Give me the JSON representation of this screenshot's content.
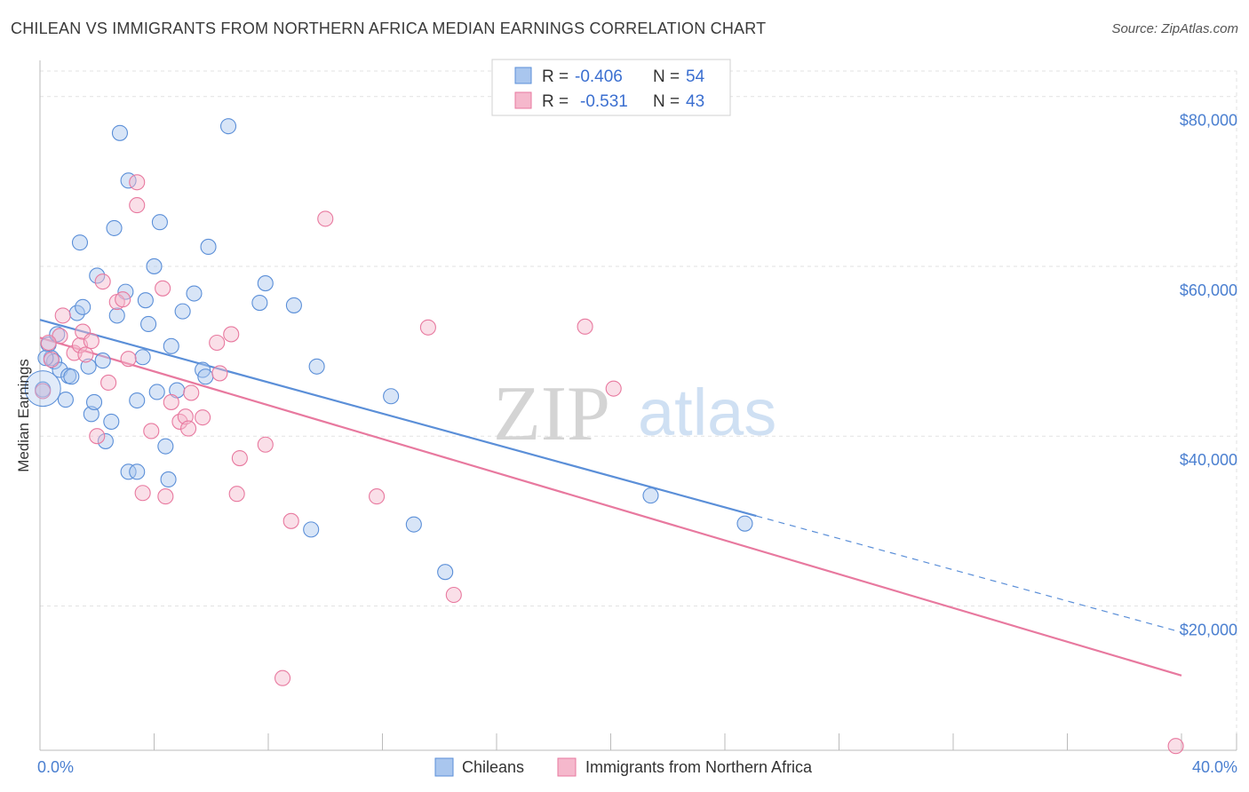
{
  "title": "CHILEAN VS IMMIGRANTS FROM NORTHERN AFRICA MEDIAN EARNINGS CORRELATION CHART",
  "source": "Source: ZipAtlas.com",
  "watermark": {
    "zip": "ZIP",
    "atlas": "atlas"
  },
  "colors": {
    "chileans": "#5b8fd8",
    "chileans_fill": "#a9c6ee",
    "immigrants": "#e8799f",
    "immigrants_fill": "#f5b8cc",
    "tick": "#4a7fd0",
    "grid": "#e2e2e2"
  },
  "chart_data": {
    "type": "scatter",
    "ylabel": "Median Earnings",
    "xlim": [
      0,
      40
    ],
    "ylim": [
      3000,
      83000
    ],
    "x_tick_labels": [
      {
        "value": 0,
        "label": "0.0%"
      },
      {
        "value": 40,
        "label": "40.0%"
      }
    ],
    "y_tick_labels": [
      {
        "value": 20000,
        "label": "$20,000"
      },
      {
        "value": 40000,
        "label": "$40,000"
      },
      {
        "value": 60000,
        "label": "$60,000"
      },
      {
        "value": 80000,
        "label": "$80,000"
      }
    ],
    "legend_stats": [
      {
        "r_label": "R =",
        "r": "-0.406",
        "n_label": "N =",
        "n": "54"
      },
      {
        "r_label": "R =",
        "r": "-0.531",
        "n_label": "N =",
        "n": "43"
      }
    ],
    "series": [
      {
        "name": "Chileans",
        "trend": {
          "x": [
            0,
            25.1
          ],
          "y": [
            53700,
            30600
          ],
          "dashed_to": [
            40,
            16900
          ]
        },
        "points": [
          [
            0.1,
            45500
          ],
          [
            0.3,
            50800
          ],
          [
            0.4,
            49200
          ],
          [
            0.5,
            48800
          ],
          [
            0.6,
            52000
          ],
          [
            0.7,
            47800
          ],
          [
            0.9,
            44300
          ],
          [
            1.0,
            47100
          ],
          [
            1.1,
            47000
          ],
          [
            1.3,
            54500
          ],
          [
            1.4,
            62800
          ],
          [
            1.5,
            55200
          ],
          [
            1.7,
            48200
          ],
          [
            1.8,
            42600
          ],
          [
            1.9,
            44000
          ],
          [
            2.0,
            58900
          ],
          [
            2.2,
            48900
          ],
          [
            2.3,
            39400
          ],
          [
            2.5,
            41700
          ],
          [
            2.6,
            64500
          ],
          [
            2.7,
            54200
          ],
          [
            2.8,
            75700
          ],
          [
            3.0,
            57000
          ],
          [
            3.1,
            35800
          ],
          [
            3.1,
            70100
          ],
          [
            3.4,
            44200
          ],
          [
            3.4,
            35800
          ],
          [
            3.6,
            49300
          ],
          [
            3.7,
            56000
          ],
          [
            3.8,
            53200
          ],
          [
            4.0,
            60000
          ],
          [
            4.1,
            45200
          ],
          [
            4.2,
            65200
          ],
          [
            4.4,
            38800
          ],
          [
            4.5,
            34900
          ],
          [
            4.6,
            50600
          ],
          [
            4.8,
            45400
          ],
          [
            5.0,
            54700
          ],
          [
            5.4,
            56800
          ],
          [
            5.7,
            47800
          ],
          [
            5.8,
            47000
          ],
          [
            5.9,
            62300
          ],
          [
            6.6,
            76500
          ],
          [
            7.7,
            55700
          ],
          [
            7.9,
            58000
          ],
          [
            8.9,
            55400
          ],
          [
            9.5,
            29000
          ],
          [
            9.7,
            48200
          ],
          [
            12.3,
            44700
          ],
          [
            13.1,
            29600
          ],
          [
            14.2,
            24000
          ],
          [
            21.4,
            33000
          ],
          [
            24.7,
            29700
          ],
          [
            0.2,
            49200
          ]
        ]
      },
      {
        "name": "Immigrants from Northern Africa",
        "trend": {
          "x": [
            0,
            40
          ],
          "y": [
            51600,
            11800
          ]
        },
        "points": [
          [
            0.1,
            45300
          ],
          [
            0.4,
            49000
          ],
          [
            0.7,
            51800
          ],
          [
            0.8,
            54200
          ],
          [
            1.2,
            49800
          ],
          [
            1.4,
            50700
          ],
          [
            1.5,
            52300
          ],
          [
            1.6,
            49600
          ],
          [
            1.8,
            51200
          ],
          [
            2.0,
            40000
          ],
          [
            2.2,
            58200
          ],
          [
            2.4,
            46300
          ],
          [
            2.7,
            55800
          ],
          [
            2.9,
            56100
          ],
          [
            3.1,
            49100
          ],
          [
            3.4,
            67200
          ],
          [
            3.4,
            69900
          ],
          [
            3.6,
            33300
          ],
          [
            3.9,
            40600
          ],
          [
            4.3,
            57400
          ],
          [
            4.4,
            32900
          ],
          [
            4.6,
            44000
          ],
          [
            4.9,
            41700
          ],
          [
            5.1,
            42300
          ],
          [
            5.2,
            40900
          ],
          [
            5.3,
            45100
          ],
          [
            5.7,
            42200
          ],
          [
            6.2,
            51000
          ],
          [
            6.3,
            47400
          ],
          [
            6.7,
            52000
          ],
          [
            6.9,
            33200
          ],
          [
            7.0,
            37400
          ],
          [
            7.9,
            39000
          ],
          [
            8.5,
            11500
          ],
          [
            8.8,
            30000
          ],
          [
            10.0,
            65600
          ],
          [
            11.8,
            32900
          ],
          [
            13.6,
            52800
          ],
          [
            14.5,
            21300
          ],
          [
            19.1,
            52900
          ],
          [
            20.1,
            45600
          ],
          [
            39.8,
            3500
          ],
          [
            0.3,
            51000
          ]
        ]
      }
    ]
  }
}
